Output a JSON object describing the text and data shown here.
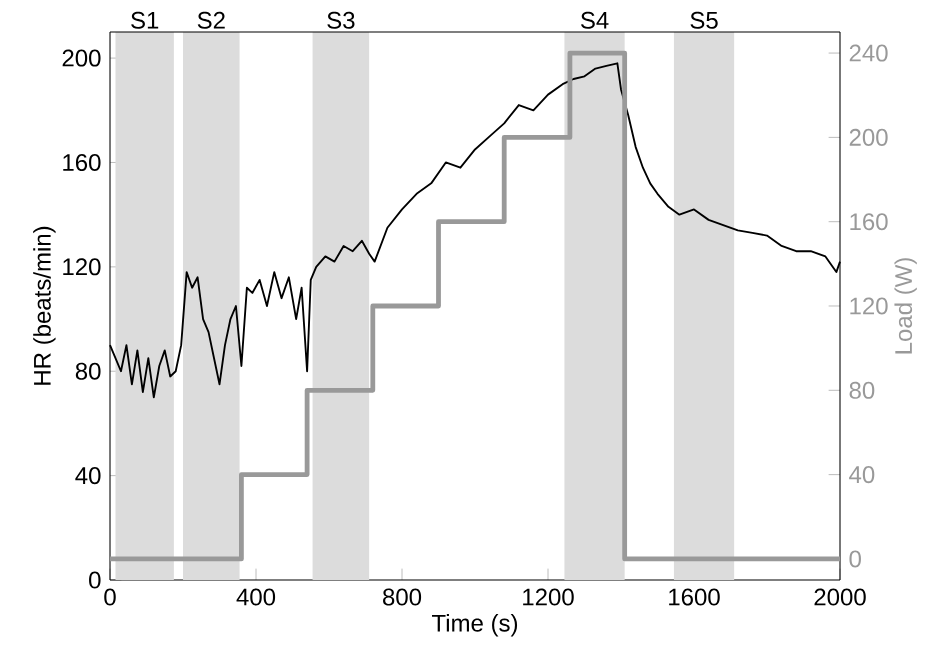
{
  "chart_data": {
    "type": "line",
    "xlabel": "Time (s)",
    "ylabel": "HR (beats/min)",
    "y2label": "Load (W)",
    "xlim": [
      0,
      2000
    ],
    "ylim": [
      0,
      210
    ],
    "y2lim": [
      -10,
      250
    ],
    "xticks": [
      0,
      400,
      800,
      1200,
      1600,
      2000
    ],
    "yticks": [
      0,
      40,
      80,
      120,
      160,
      200
    ],
    "y2ticks": [
      0,
      40,
      80,
      120,
      160,
      200,
      240
    ],
    "series": [
      {
        "color": "#000000",
        "x": [
          0,
          15,
          30,
          45,
          60,
          75,
          90,
          105,
          120,
          135,
          150,
          165,
          180,
          195,
          210,
          225,
          240,
          255,
          270,
          285,
          300,
          315,
          330,
          345,
          360,
          375,
          390,
          410,
          430,
          450,
          470,
          490,
          510,
          525,
          540,
          550,
          565,
          590,
          615,
          640,
          665,
          690,
          710,
          725,
          760,
          800,
          840,
          880,
          920,
          960,
          1000,
          1040,
          1080,
          1120,
          1160,
          1200,
          1240,
          1270,
          1300,
          1330,
          1360,
          1390,
          1400,
          1420,
          1440,
          1460,
          1480,
          1500,
          1530,
          1560,
          1600,
          1640,
          1680,
          1720,
          1760,
          1800,
          1840,
          1880,
          1920,
          1960,
          1990,
          2000
        ],
        "values": [
          90,
          85,
          80,
          90,
          75,
          88,
          72,
          85,
          70,
          82,
          88,
          78,
          80,
          90,
          118,
          112,
          116,
          100,
          95,
          85,
          75,
          90,
          100,
          105,
          82,
          112,
          110,
          115,
          105,
          118,
          108,
          116,
          100,
          112,
          80,
          115,
          120,
          124,
          122,
          128,
          126,
          130,
          125,
          122,
          135,
          142,
          148,
          152,
          160,
          158,
          165,
          170,
          175,
          182,
          180,
          186,
          190,
          192,
          193,
          196,
          197,
          198,
          188,
          178,
          166,
          158,
          152,
          148,
          143,
          140,
          142,
          138,
          136,
          134,
          133,
          132,
          128,
          126,
          126,
          124,
          118,
          122
        ]
      },
      {
        "type": "step",
        "axis": "y2",
        "color": "#999999",
        "x": [
          0,
          360,
          540,
          720,
          900,
          1080,
          1260,
          1410,
          2000
        ],
        "values": [
          0,
          40,
          80,
          120,
          160,
          200,
          240,
          0,
          0
        ]
      }
    ],
    "bands": [
      {
        "axis": "x",
        "from": 15,
        "to": 175,
        "label": "S1",
        "color": "#dcdcdc"
      },
      {
        "axis": "x",
        "from": 200,
        "to": 355,
        "label": "S2",
        "color": "#dcdcdc"
      },
      {
        "axis": "x",
        "from": 555,
        "to": 710,
        "label": "S3",
        "color": "#dcdcdc"
      },
      {
        "axis": "x",
        "from": 1245,
        "to": 1410,
        "label": "S4",
        "color": "#dcdcdc"
      },
      {
        "axis": "x",
        "from": 1545,
        "to": 1710,
        "label": "S5",
        "color": "#dcdcdc"
      }
    ]
  }
}
